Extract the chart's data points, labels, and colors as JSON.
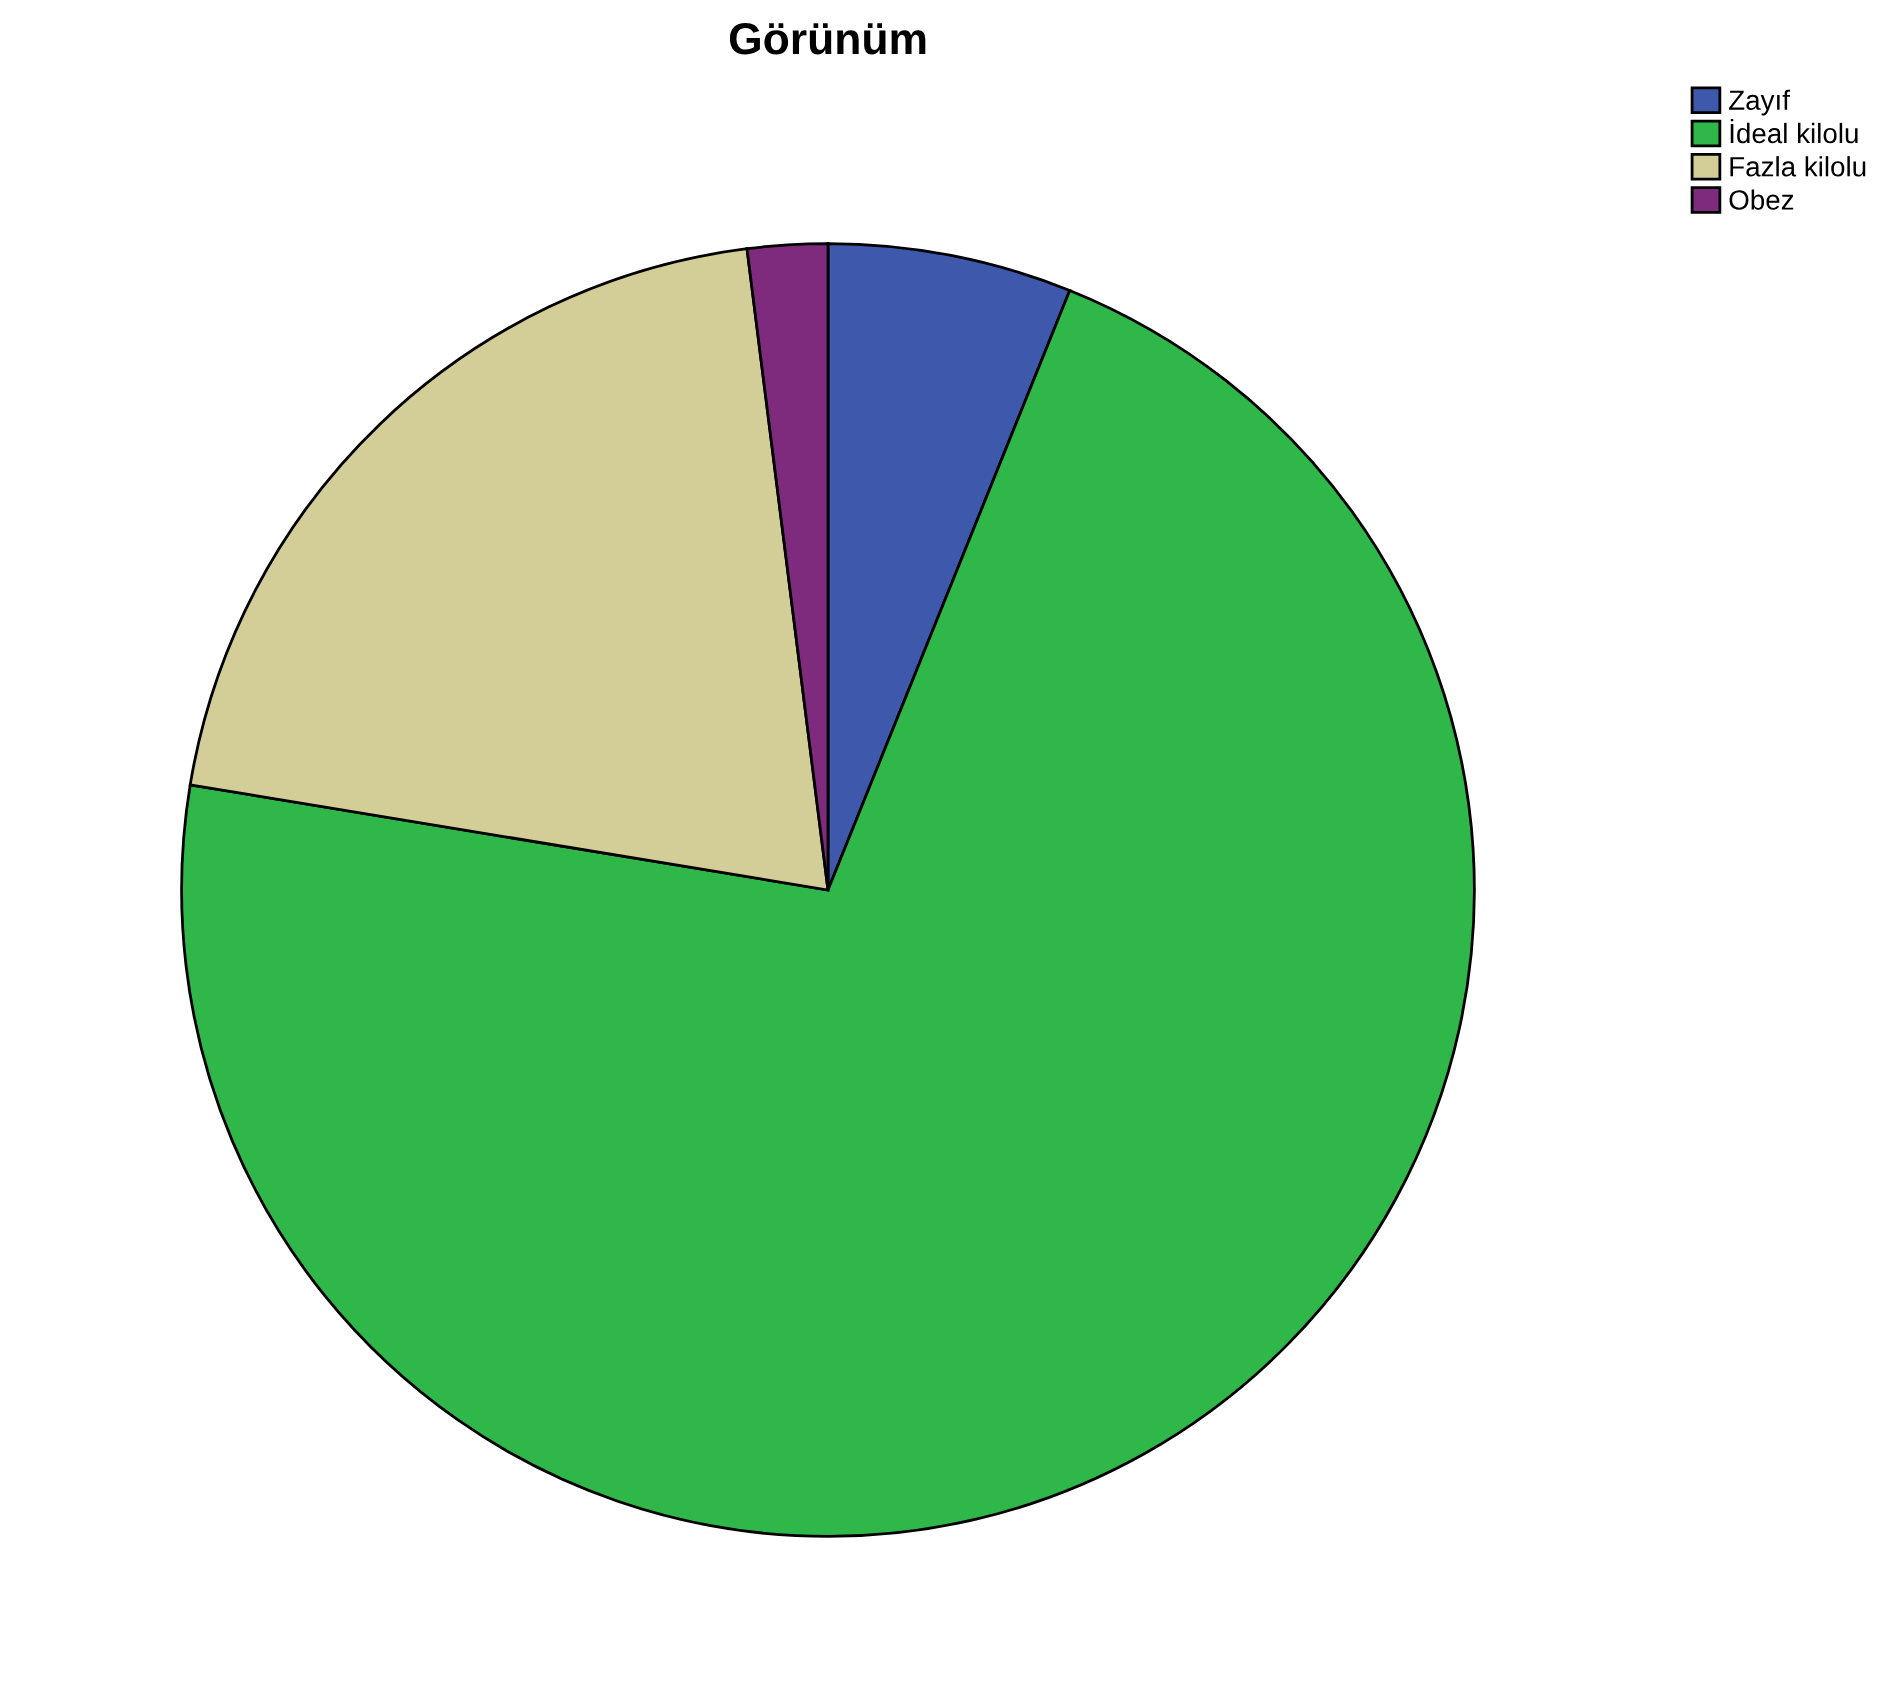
{
  "chart_data": {
    "type": "pie",
    "title": "Görünüm",
    "categories": [
      "Zayıf",
      "İdeal kilolu",
      "Fazla kilolu",
      "Obez"
    ],
    "values": [
      6.1,
      71.5,
      20.4,
      2.0
    ],
    "colors": [
      "#3e58ac",
      "#2fb74a",
      "#d3cd98",
      "#7e2a7d"
    ],
    "legend": "top right"
  }
}
